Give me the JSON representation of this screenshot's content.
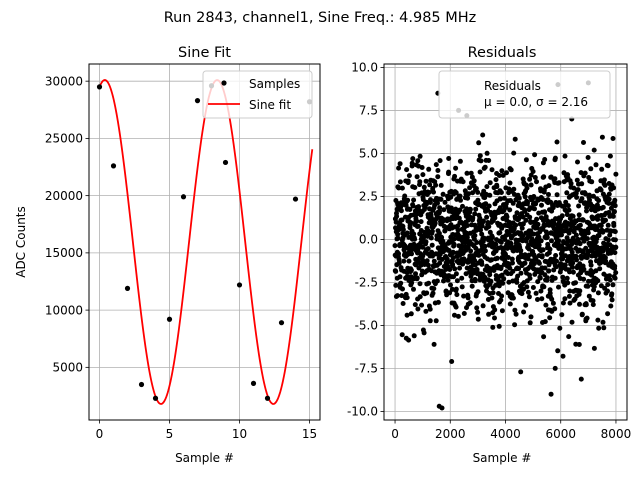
{
  "figure": {
    "suptitle": "Run 2843, channel1, Sine Freq.: 4.985 MHz"
  },
  "chart_data": [
    {
      "type": "scatter",
      "title": "Sine Fit",
      "xlabel": "Sample #",
      "ylabel": "ADC Counts",
      "xlim": [
        -0.75,
        15.75
      ],
      "ylim": [
        400,
        31500
      ],
      "xticks": [
        0,
        5,
        10,
        15
      ],
      "yticks": [
        5000,
        10000,
        15000,
        20000,
        25000,
        30000
      ],
      "grid": true,
      "legend": {
        "placement": "upper-right",
        "entries": [
          "Samples",
          "Sine fit"
        ]
      },
      "series": [
        {
          "name": "Samples",
          "kind": "points",
          "color": "#000000",
          "x": [
            0,
            1,
            2,
            3,
            4,
            5,
            6,
            7,
            8,
            9,
            10,
            11,
            12,
            13,
            14,
            15
          ],
          "y": [
            29500,
            22600,
            11900,
            3500,
            2300,
            9200,
            19900,
            28300,
            29600,
            22900,
            12200,
            3600,
            2300,
            8900,
            19700,
            28200
          ]
        },
        {
          "name": "Sine fit",
          "kind": "line",
          "color": "#ff0000",
          "function": {
            "offset": 15950,
            "amplitude": 14150,
            "period": 8.0241,
            "phase_deg": 73
          }
        }
      ]
    },
    {
      "type": "scatter",
      "title": "Residuals",
      "xlabel": "Sample #",
      "ylabel": "",
      "xlim": [
        -400,
        8400
      ],
      "ylim": [
        -10.5,
        10.2
      ],
      "xticks": [
        0,
        2000,
        4000,
        6000,
        8000
      ],
      "yticks": [
        -10.0,
        -7.5,
        -5.0,
        -2.5,
        0.0,
        2.5,
        5.0,
        7.5,
        10.0
      ],
      "grid": true,
      "legend": {
        "placement": "upper-right",
        "entries": [
          "Residuals",
          "μ = 0.0, σ = 2.16"
        ]
      },
      "series": [
        {
          "name": "Residuals",
          "color": "#000000",
          "n_points": 8000,
          "x_range": [
            0,
            7999
          ],
          "mean": 0.0,
          "std": 2.16,
          "outliers": [
            {
              "x": 1600,
              "y": -9.7
            },
            {
              "x": 1700,
              "y": -9.8
            },
            {
              "x": 5650,
              "y": -9.0
            },
            {
              "x": 1550,
              "y": 8.5
            },
            {
              "x": 5900,
              "y": 9.0
            },
            {
              "x": 7000,
              "y": 9.1
            },
            {
              "x": 2300,
              "y": 7.5
            },
            {
              "x": 2600,
              "y": 7.2
            },
            {
              "x": 4550,
              "y": -7.7
            },
            {
              "x": 2050,
              "y": -7.1
            },
            {
              "x": 5800,
              "y": -7.5
            },
            {
              "x": 6400,
              "y": 7.0
            }
          ]
        }
      ],
      "legend_labels": {
        "series": "Residuals",
        "stats": "μ = 0.0, σ = 2.16"
      }
    }
  ]
}
